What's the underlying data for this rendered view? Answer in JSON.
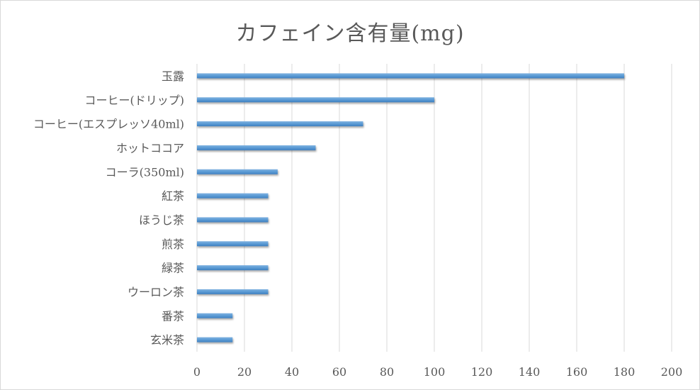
{
  "chart_data": {
    "type": "bar",
    "orientation": "horizontal",
    "title": "カフェイン含有量(mg)",
    "categories": [
      "玉露",
      "コーヒー(ドリップ)",
      "コーヒー(エスプレッソ40ml)",
      "ホットココア",
      "コーラ(350ml)",
      "紅茶",
      "ほうじ茶",
      "煎茶",
      "緑茶",
      "ウーロン茶",
      "番茶",
      "玄米茶"
    ],
    "values": [
      180,
      100,
      70,
      50,
      34,
      30,
      30,
      30,
      30,
      30,
      15,
      15
    ],
    "xlim": [
      0,
      200
    ],
    "xticks": [
      "0",
      "20",
      "40",
      "60",
      "80",
      "100",
      "120",
      "140",
      "160",
      "180",
      "200"
    ],
    "grid": true,
    "legend": "none",
    "bar_color": "#5b9bd5"
  }
}
